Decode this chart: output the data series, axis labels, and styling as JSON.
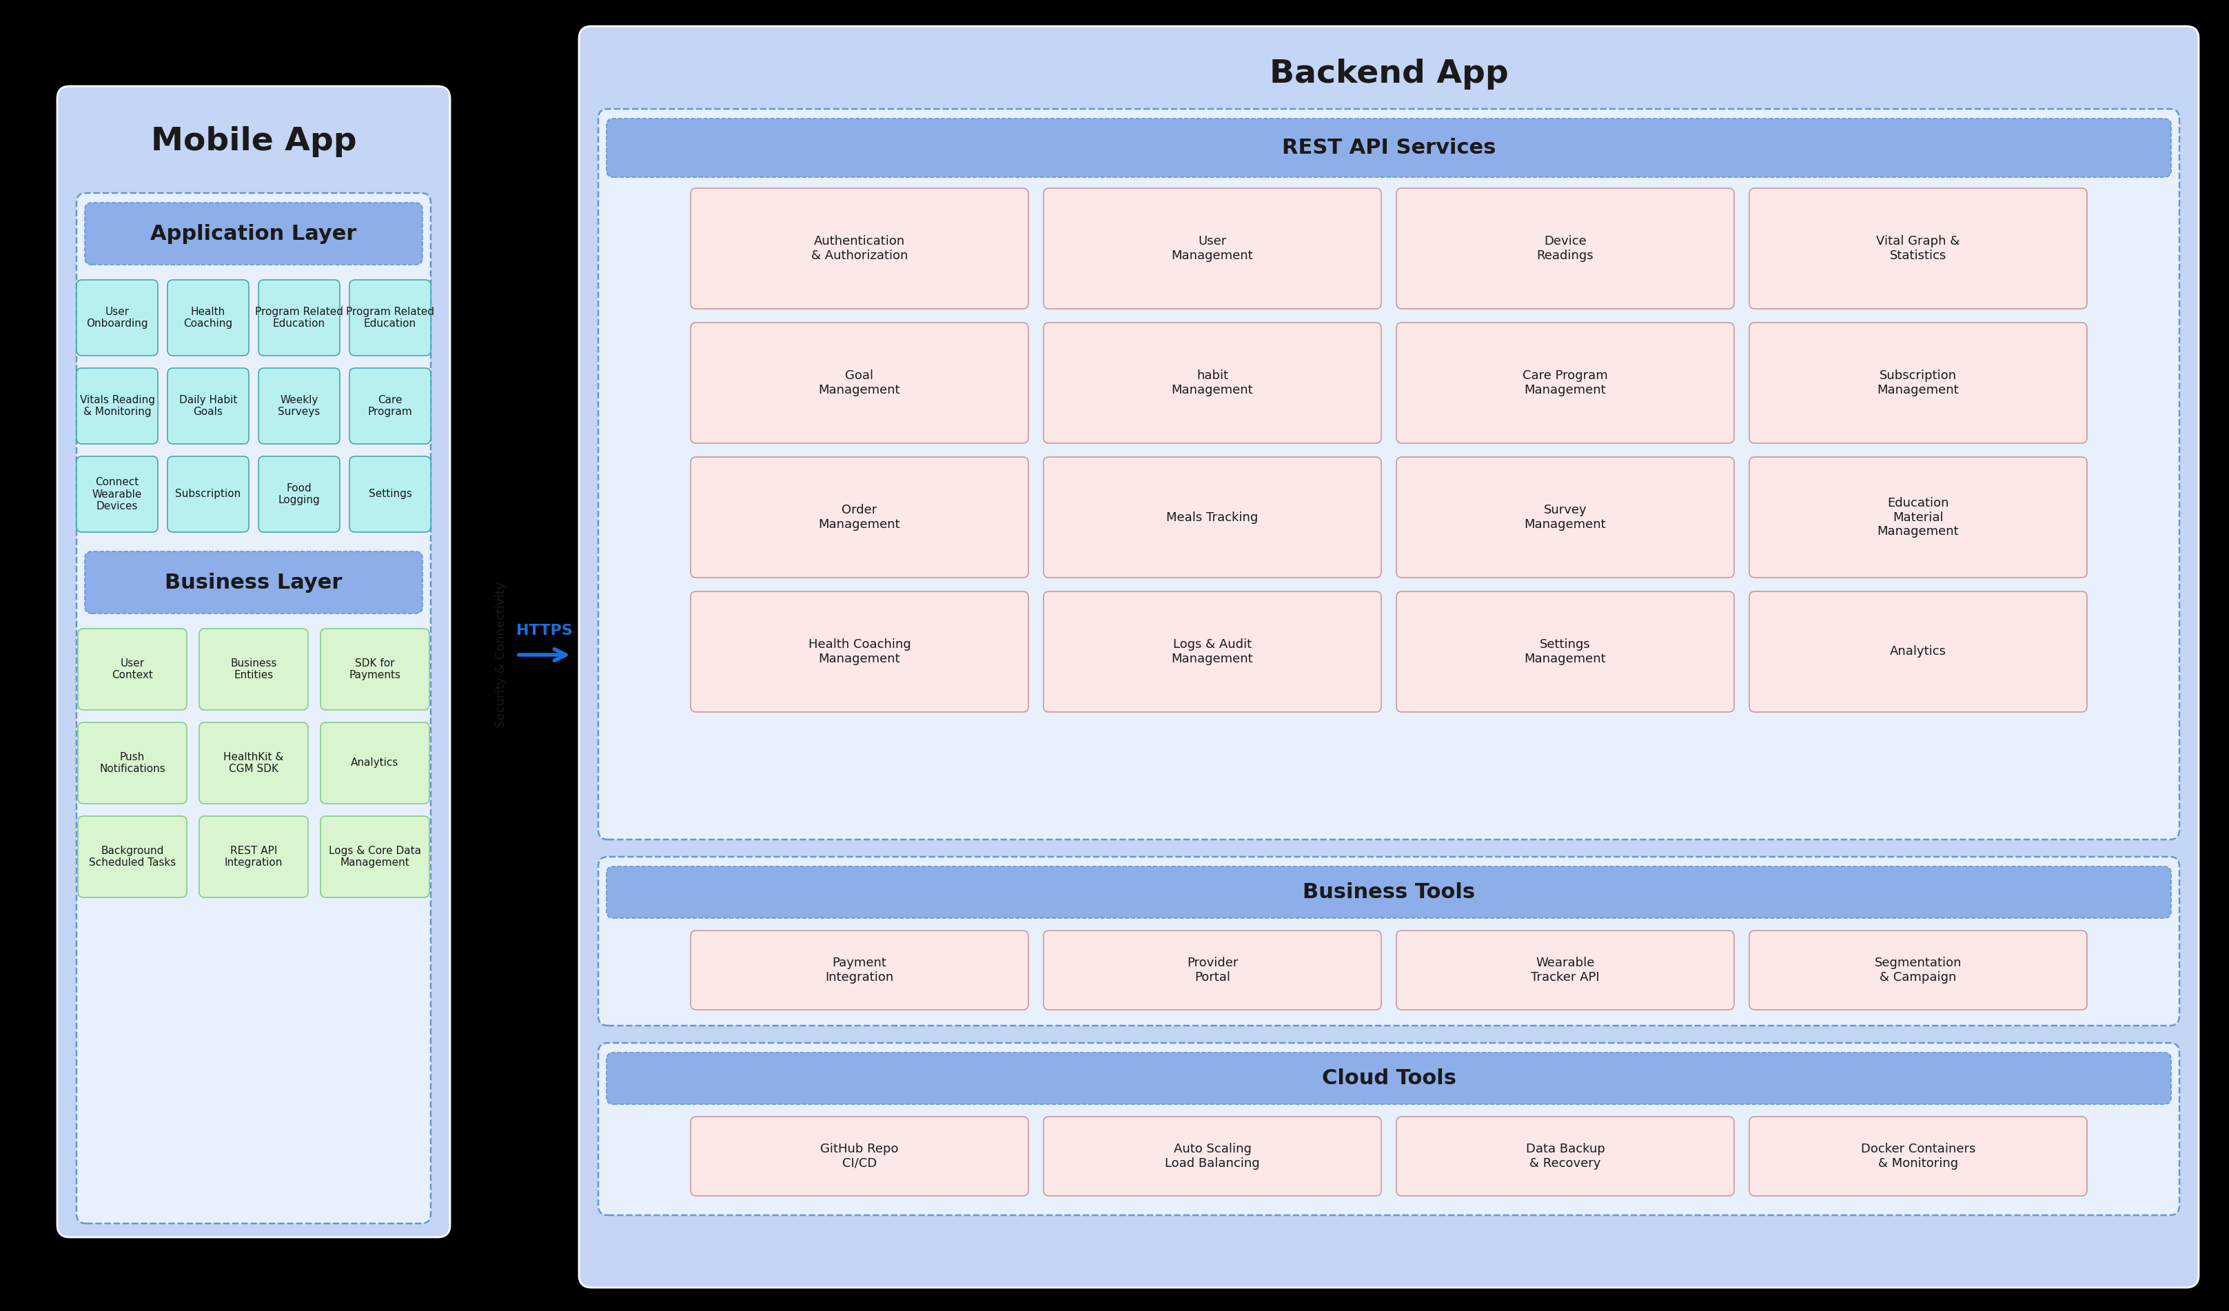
{
  "bg_color": "#000000",
  "mobile_bg": "#c5d5f5",
  "backend_bg": "#c5d5f5",
  "inner_bg": "#e8f0fc",
  "header_bg": "#8daee8",
  "cyan_box_bg": "#b8f0f0",
  "green_box_bg": "#d8f5d0",
  "pink_box_bg": "#fde8e8",
  "dashed_edge": "#6699cc",
  "cyan_edge": "#44aaaa",
  "green_edge": "#88cc88",
  "pink_edge": "#cc9999",
  "text_color": "#1a1a1a",
  "arrow_color": "#1a6fdf",
  "mobile_title": "Mobile App",
  "backend_title": "Backend App",
  "app_layer_header": "Application Layer",
  "biz_layer_header": "Business Layer",
  "rest_api_header": "REST API Services",
  "biz_tools_header": "Business Tools",
  "cloud_tools_header": "Cloud Tools",
  "https_label": "HTTPS",
  "security_label": "Security & Connectivity",
  "app_layer_items": [
    [
      "User\nOnboarding",
      "Health\nCoaching",
      "Program Related\nEducation",
      "Program Related\nEducation"
    ],
    [
      "Vitals Reading\n& Monitoring",
      "Daily Habit\nGoals",
      "Weekly\nSurveys",
      "Care\nProgram"
    ],
    [
      "Connect\nWearable\nDevices",
      "Subscription",
      "Food\nLogging",
      "Settings"
    ]
  ],
  "biz_layer_items": [
    [
      "User\nContext",
      "Business\nEntities",
      "SDK for\nPayments"
    ],
    [
      "Push\nNotifications",
      "HealthKit &\nCGM SDK",
      "Analytics"
    ],
    [
      "Background\nScheduled Tasks",
      "REST API\nIntegration",
      "Logs & Core Data\nManagement"
    ]
  ],
  "rest_api_items": [
    [
      "Authentication\n& Authorization",
      "User\nManagement",
      "Device\nReadings",
      "Vital Graph &\nStatistics"
    ],
    [
      "Goal\nManagement",
      "habit\nManagement",
      "Care Program\nManagement",
      "Subscription\nManagement"
    ],
    [
      "Order\nManagement",
      "Meals Tracking",
      "Survey\nManagement",
      "Education\nMaterial\nManagement"
    ],
    [
      "Health Coaching\nManagement",
      "Logs & Audit\nManagement",
      "Settings\nManagement",
      "Analytics"
    ]
  ],
  "biz_tools_items": [
    "Payment\nIntegration",
    "Provider\nPortal",
    "Wearable\nTracker API",
    "Segmentation\n& Campaign"
  ],
  "cloud_tools_items": [
    "GitHub Repo\nCI/CD",
    "Auto Scaling\nLoad Balancing",
    "Data Backup\n& Recovery",
    "Docker Containers\n& Monitoring"
  ]
}
